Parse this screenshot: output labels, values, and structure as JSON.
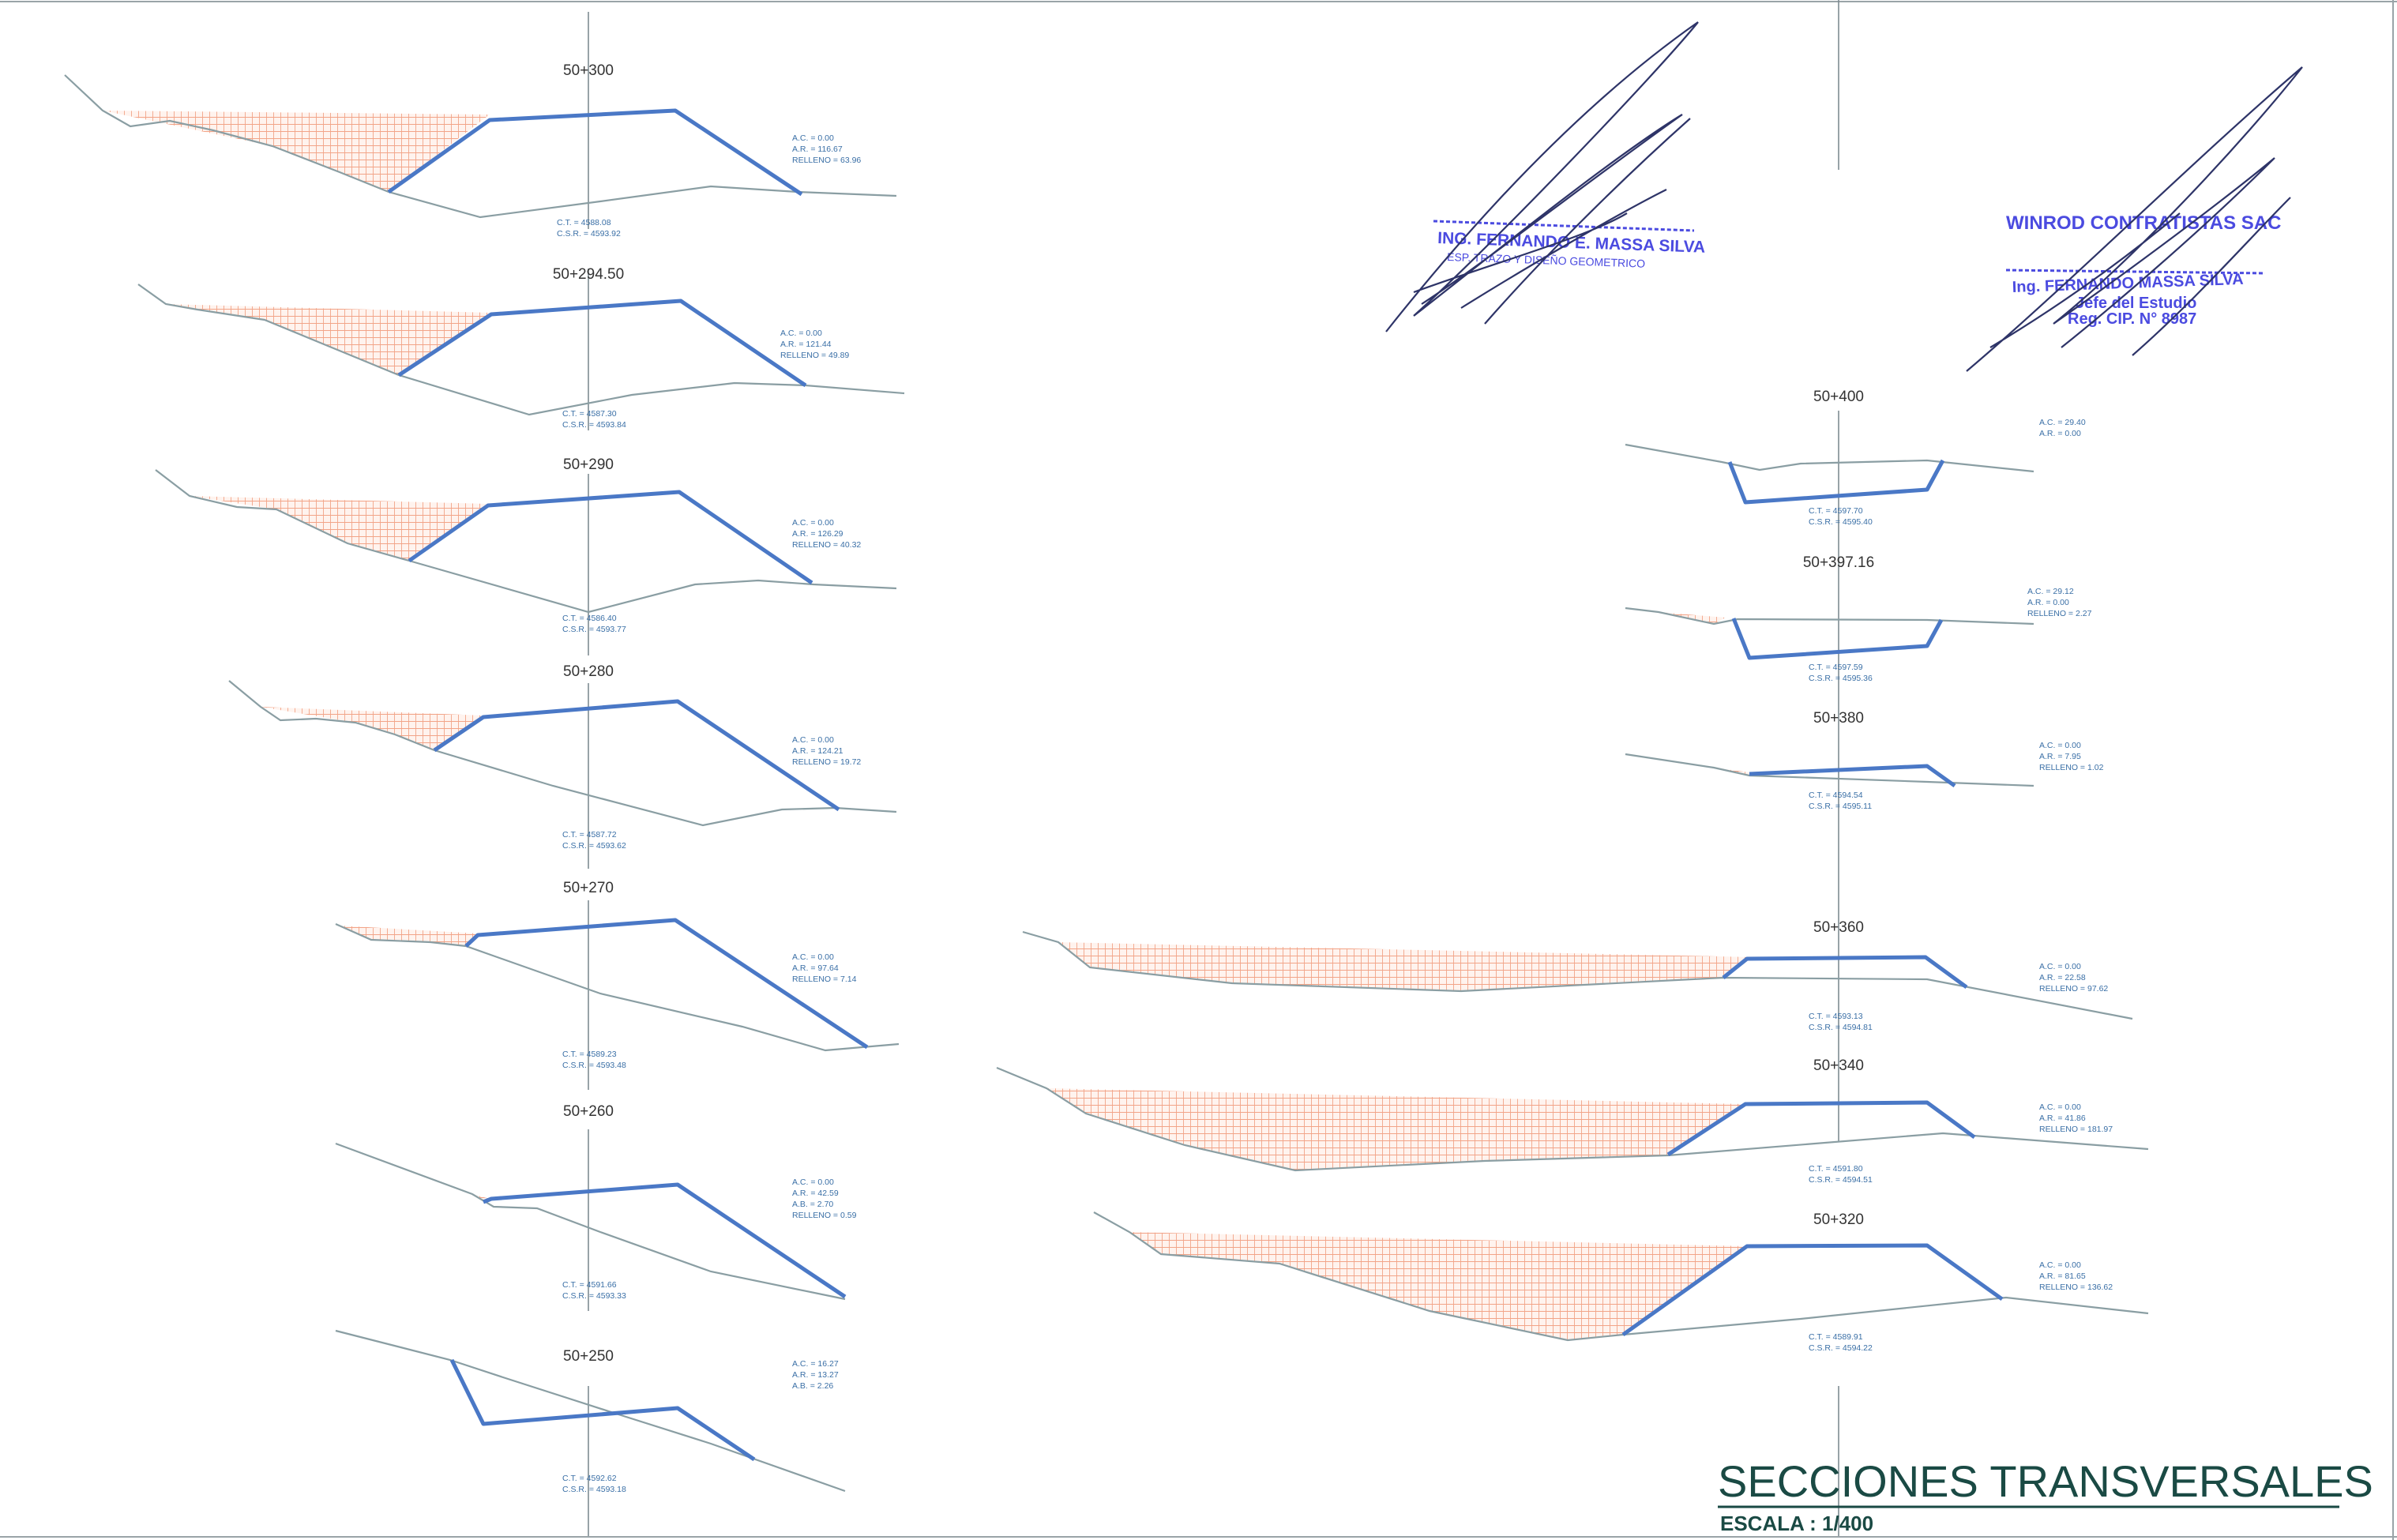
{
  "sections": [
    {
      "station": "50+300",
      "values": [
        "A.C. = 0.00",
        "A.R. = 116.67",
        "RELLENO = 63.96"
      ],
      "ct": "C.T. = 4588.08",
      "csr": "C.S.R. = 4593.92"
    },
    {
      "station": "50+294.50",
      "values": [
        "A.C. = 0.00",
        "A.R. = 121.44",
        "RELLENO = 49.89"
      ],
      "ct": "C.T. = 4587.30",
      "csr": "C.S.R. = 4593.84"
    },
    {
      "station": "50+290",
      "values": [
        "A.C. = 0.00",
        "A.R. = 126.29",
        "RELLENO = 40.32"
      ],
      "ct": "C.T. = 4586.40",
      "csr": "C.S.R. = 4593.77"
    },
    {
      "station": "50+280",
      "values": [
        "A.C. = 0.00",
        "A.R. = 124.21",
        "RELLENO = 19.72"
      ],
      "ct": "C.T. = 4587.72",
      "csr": "C.S.R. = 4593.62"
    },
    {
      "station": "50+270",
      "values": [
        "A.C. = 0.00",
        "A.R. = 97.64",
        "RELLENO = 7.14"
      ],
      "ct": "C.T. = 4589.23",
      "csr": "C.S.R. = 4593.48"
    },
    {
      "station": "50+260",
      "values": [
        "A.C. = 0.00",
        "A.R. = 42.59",
        "A.B. = 2.70",
        "RELLENO = 0.59"
      ],
      "ct": "C.T. = 4591.66",
      "csr": "C.S.R. = 4593.33"
    },
    {
      "station": "50+250",
      "values": [
        "A.C. = 16.27",
        "A.R. = 13.27",
        "A.B. = 2.26"
      ],
      "ct": "C.T. = 4592.62",
      "csr": "C.S.R. = 4593.18"
    },
    {
      "station": "50+400",
      "values": [
        "A.C. = 29.40",
        "A.R. = 0.00"
      ],
      "ct": "C.T. = 4597.70",
      "csr": "C.S.R. = 4595.40"
    },
    {
      "station": "50+397.16",
      "values": [
        "A.C. = 29.12",
        "A.R. = 0.00",
        "RELLENO = 2.27"
      ],
      "ct": "C.T. = 4597.59",
      "csr": "C.S.R. = 4595.36"
    },
    {
      "station": "50+380",
      "values": [
        "A.C. = 0.00",
        "A.R. = 7.95",
        "RELLENO = 1.02"
      ],
      "ct": "C.T. = 4594.54",
      "csr": "C.S.R. = 4595.11"
    },
    {
      "station": "50+360",
      "values": [
        "A.C. = 0.00",
        "A.R. = 22.58",
        "RELLENO = 97.62"
      ],
      "ct": "C.T. = 4593.13",
      "csr": "C.S.R. = 4594.81"
    },
    {
      "station": "50+340",
      "values": [
        "A.C. = 0.00",
        "A.R. = 41.86",
        "RELLENO = 181.97"
      ],
      "ct": "C.T. = 4591.80",
      "csr": "C.S.R. = 4594.51"
    },
    {
      "station": "50+320",
      "values": [
        "A.C. = 0.00",
        "A.R. = 81.65",
        "RELLENO = 136.62"
      ],
      "ct": "C.T. = 4589.91",
      "csr": "C.S.R. = 4594.22"
    }
  ],
  "stamp_left": {
    "name": "ING. FERNANDO E. MASSA SILVA",
    "role": "ESP. TRAZO Y DISEÑO GEOMETRICO"
  },
  "stamp_right": {
    "company": "WINROD CONTRATISTAS SAC",
    "name": "Ing. FERNANDO MASSA SILVA",
    "role": "Jefe del Estudio",
    "reg": "Reg. CIP. N° 8987"
  },
  "title": "SECCIONES TRANSVERSALES",
  "scale": "ESCALA : 1/400",
  "colors": {
    "road": "#4a78c6",
    "ground": "#8a9ea3",
    "fill_hatch": "#f08a6e",
    "stamp": "#4b4be0",
    "title": "#1a4a44"
  }
}
